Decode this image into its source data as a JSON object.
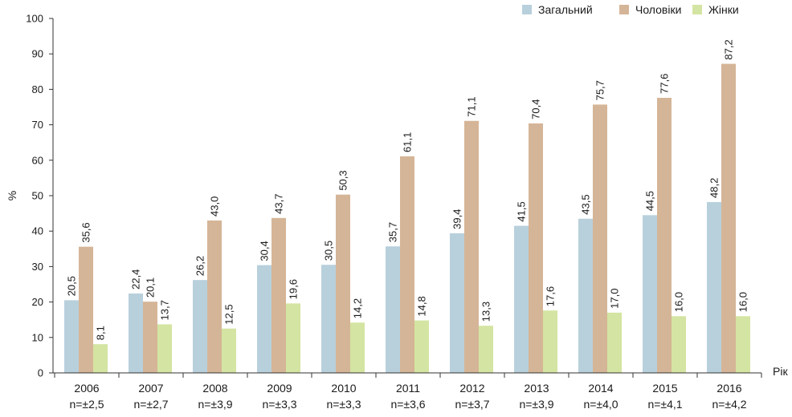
{
  "chart_data": {
    "type": "bar",
    "ylabel": "%",
    "xlabel": "Рік",
    "ylim": [
      0,
      100
    ],
    "yticks": [
      0,
      10,
      20,
      30,
      40,
      50,
      60,
      70,
      80,
      90,
      100
    ],
    "categories": [
      "2006",
      "2007",
      "2008",
      "2009",
      "2010",
      "2011",
      "2012",
      "2013",
      "2014",
      "2015",
      "2016"
    ],
    "category_notes": [
      "n=±2,5",
      "n=±2,7",
      "n=±3,9",
      "n=±3,3",
      "n=±3,3",
      "n=±3,6",
      "n=±3,7",
      "n=±3,9",
      "n=±4,0",
      "n=±4,1",
      "n=±4,2"
    ],
    "legend_position": "top-right",
    "grid": false,
    "series": [
      {
        "name": "Загальний",
        "color": "#b8d0dc",
        "values": [
          20.5,
          22.4,
          26.2,
          30.4,
          30.5,
          35.7,
          39.4,
          41.5,
          43.5,
          44.5,
          48.2
        ],
        "labels": [
          "20,5",
          "22,4",
          "26,2",
          "30,4",
          "30,5",
          "35,7",
          "39,4",
          "41,5",
          "43,5",
          "44,5",
          "48,2"
        ]
      },
      {
        "name": "Чоловіки",
        "color": "#d5b597",
        "values": [
          35.6,
          20.1,
          43.0,
          43.7,
          50.3,
          61.1,
          71.1,
          70.4,
          75.7,
          77.6,
          87.2
        ],
        "labels": [
          "35,6",
          "20,1",
          "43,0",
          "43,7",
          "50,3",
          "61,1",
          "71,1",
          "70,4",
          "75,7",
          "77,6",
          "87,2"
        ]
      },
      {
        "name": "Жінки",
        "color": "#d4e4a2",
        "values": [
          8.1,
          13.7,
          12.5,
          19.6,
          14.2,
          14.8,
          13.3,
          17.6,
          17.0,
          16.0,
          16.0
        ],
        "labels": [
          "8,1",
          "13,7",
          "12,5",
          "19,6",
          "14,2",
          "14,8",
          "13,3",
          "17,6",
          "17,0",
          "16,0",
          "16,0"
        ]
      }
    ]
  }
}
